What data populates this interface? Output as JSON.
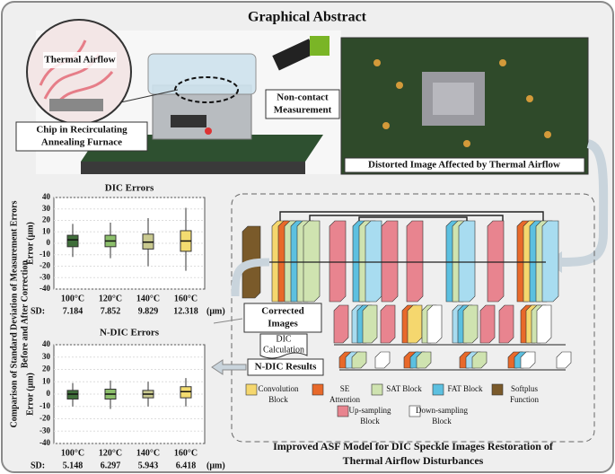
{
  "title": "Graphical Abstract",
  "photo": {
    "magnifier_label": "Thermal Airflow",
    "furnace_label": [
      "Chip in Recirculating",
      "Annealing Furnace"
    ],
    "camera_label": [
      "Non-contact",
      "Measurement"
    ],
    "distorted_caption": "Distorted Image Affected by Thermal Airflow"
  },
  "side_label": [
    "Comparison of Standard Deviation of Measurement Errors",
    "Before and After Correction"
  ],
  "chart_data": [
    {
      "type": "box",
      "title": "DIC Errors",
      "y_label": "Error (μm)",
      "categories": [
        "100°C",
        "120°C",
        "140°C",
        "160°C"
      ],
      "q1": [
        -3,
        -3,
        -5,
        -7
      ],
      "median": [
        3,
        2,
        1,
        2
      ],
      "q3": [
        7,
        7,
        8,
        11
      ],
      "whisker_low": [
        -12,
        -13,
        -20,
        -24
      ],
      "whisker_high": [
        17,
        18,
        22,
        31
      ],
      "colors": [
        "#3f6e3a",
        "#8cbf6b",
        "#c9c98f",
        "#f3dc70"
      ],
      "points_color": "#e03030",
      "ylim": [
        -40,
        40
      ],
      "yticks": [
        -40,
        -30,
        -20,
        -10,
        0,
        10,
        20,
        30,
        40
      ],
      "grid": true,
      "sd_label": "SD:",
      "sd_values": [
        7.184,
        7.852,
        9.829,
        12.318
      ],
      "sd_unit": "(μm)"
    },
    {
      "type": "box",
      "title": "N-DIC Errors",
      "y_label": "Error (μm)",
      "categories": [
        "100°C",
        "120°C",
        "140°C",
        "160°C"
      ],
      "q1": [
        -4,
        -4,
        -3,
        -3
      ],
      "median": [
        0,
        0,
        0,
        2
      ],
      "q3": [
        3,
        4,
        3,
        6
      ],
      "whisker_low": [
        -10,
        -12,
        -10,
        -10
      ],
      "whisker_high": [
        9,
        11,
        10,
        13
      ],
      "colors": [
        "#3f6e3a",
        "#8cbf6b",
        "#c9c98f",
        "#f3dc70"
      ],
      "points_color": "#2f5fc0",
      "ylim": [
        -40,
        40
      ],
      "yticks": [
        -40,
        -30,
        -20,
        -10,
        0,
        10,
        20,
        30,
        40
      ],
      "grid": true,
      "sd_label": "SD:",
      "sd_values": [
        5.148,
        6.297,
        5.943,
        6.418
      ],
      "sd_unit": "(μm)"
    }
  ],
  "flow": {
    "corrected": [
      "Corrected",
      "Images"
    ],
    "dic": [
      "DIC",
      "Calculation"
    ],
    "ndic": "N-DIC Results"
  },
  "legend": [
    {
      "label": [
        "Convolution",
        "Block"
      ],
      "color": "#f5d76e"
    },
    {
      "label": [
        "SE",
        "Attention"
      ],
      "color": "#e8692a"
    },
    {
      "label": [
        "SAT Block"
      ],
      "color": "#cfe3b0"
    },
    {
      "label": [
        "FAT Block"
      ],
      "color": "#5cc0e0"
    },
    {
      "label": [
        "Softplus",
        "Function"
      ],
      "color": "#7a5a2a"
    },
    {
      "label": [
        "Up-sampling",
        "Block"
      ],
      "color": "#e8848f"
    },
    {
      "label": [
        "Down-sampling",
        "Block"
      ],
      "color": "#ffffff"
    }
  ],
  "model_caption": [
    "Improved ASF Model for DIC Speckle Images Restoration of",
    "Thermal Airflow Disturbances"
  ]
}
